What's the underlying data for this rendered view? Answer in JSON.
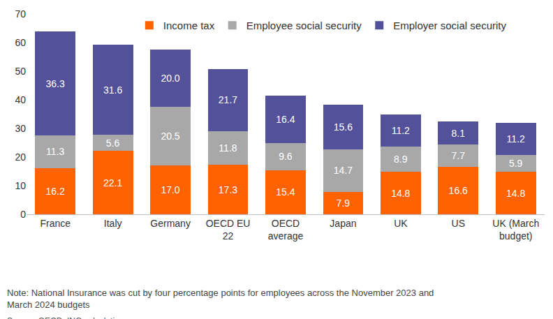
{
  "chart_data": {
    "type": "bar",
    "stacked": true,
    "data_labels": true,
    "grid": false,
    "legend": "top",
    "categories": [
      "France",
      "Italy",
      "Germany",
      "OECD EU 22",
      "OECD average",
      "Japan",
      "UK",
      "US",
      "UK (March budget)"
    ],
    "series": [
      {
        "name": "Income tax",
        "color": "#ff6200",
        "values": [
          16.2,
          22.1,
          17.0,
          17.3,
          15.4,
          7.9,
          14.8,
          16.6,
          14.8
        ],
        "value_labels": [
          "16.2",
          "22.1",
          "17.0",
          "17.3",
          "15.4",
          "7.9",
          "14.8",
          "16.6",
          "14.8"
        ]
      },
      {
        "name": "Employee social security",
        "color": "#a8a8a8",
        "values": [
          11.3,
          5.6,
          20.5,
          11.8,
          9.6,
          14.7,
          8.9,
          7.7,
          5.9
        ],
        "value_labels": [
          "11.3",
          "5.6",
          "20.5",
          "11.8",
          "9.6",
          "14.7",
          "8.9",
          "7.7",
          "5.9"
        ]
      },
      {
        "name": "Employer social security",
        "color": "#525199",
        "values": [
          36.3,
          31.6,
          20.0,
          21.7,
          16.4,
          15.6,
          11.2,
          8.1,
          11.2
        ],
        "value_labels": [
          "36.3",
          "31.6",
          "20.0",
          "21.7",
          "16.4",
          "15.6",
          "11.2",
          "8.1",
          "11.2"
        ]
      }
    ],
    "ylim": [
      0,
      70
    ],
    "yticks": [
      0,
      10,
      20,
      30,
      40,
      50,
      60,
      70
    ],
    "note": "Note: National Insurance was cut by four percentage points for employees across the November 2023 and March 2024 budgets",
    "source": "Source: OECD, ING calculations"
  }
}
